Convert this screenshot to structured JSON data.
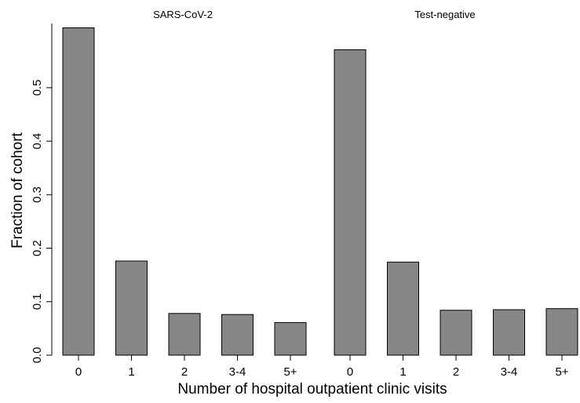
{
  "chart_data": {
    "type": "bar",
    "xlabel": "Number of hospital outpatient clinic visits",
    "ylabel": "Fraction of cohort",
    "ylim": [
      0,
      0.62
    ],
    "yticks": [
      0.0,
      0.1,
      0.2,
      0.3,
      0.4,
      0.5
    ],
    "ytick_labels": [
      "0.0",
      "0.1",
      "0.2",
      "0.3",
      "0.4",
      "0.5"
    ],
    "grid": false,
    "bar_color": "#878787",
    "panels": [
      {
        "title": "SARS-CoV-2",
        "categories": [
          "0",
          "1",
          "2",
          "3-4",
          "5+"
        ],
        "values": [
          0.612,
          0.176,
          0.078,
          0.076,
          0.061
        ]
      },
      {
        "title": "Test-negative",
        "categories": [
          "0",
          "1",
          "2",
          "3-4",
          "5+"
        ],
        "values": [
          0.571,
          0.174,
          0.084,
          0.085,
          0.087
        ]
      }
    ]
  }
}
